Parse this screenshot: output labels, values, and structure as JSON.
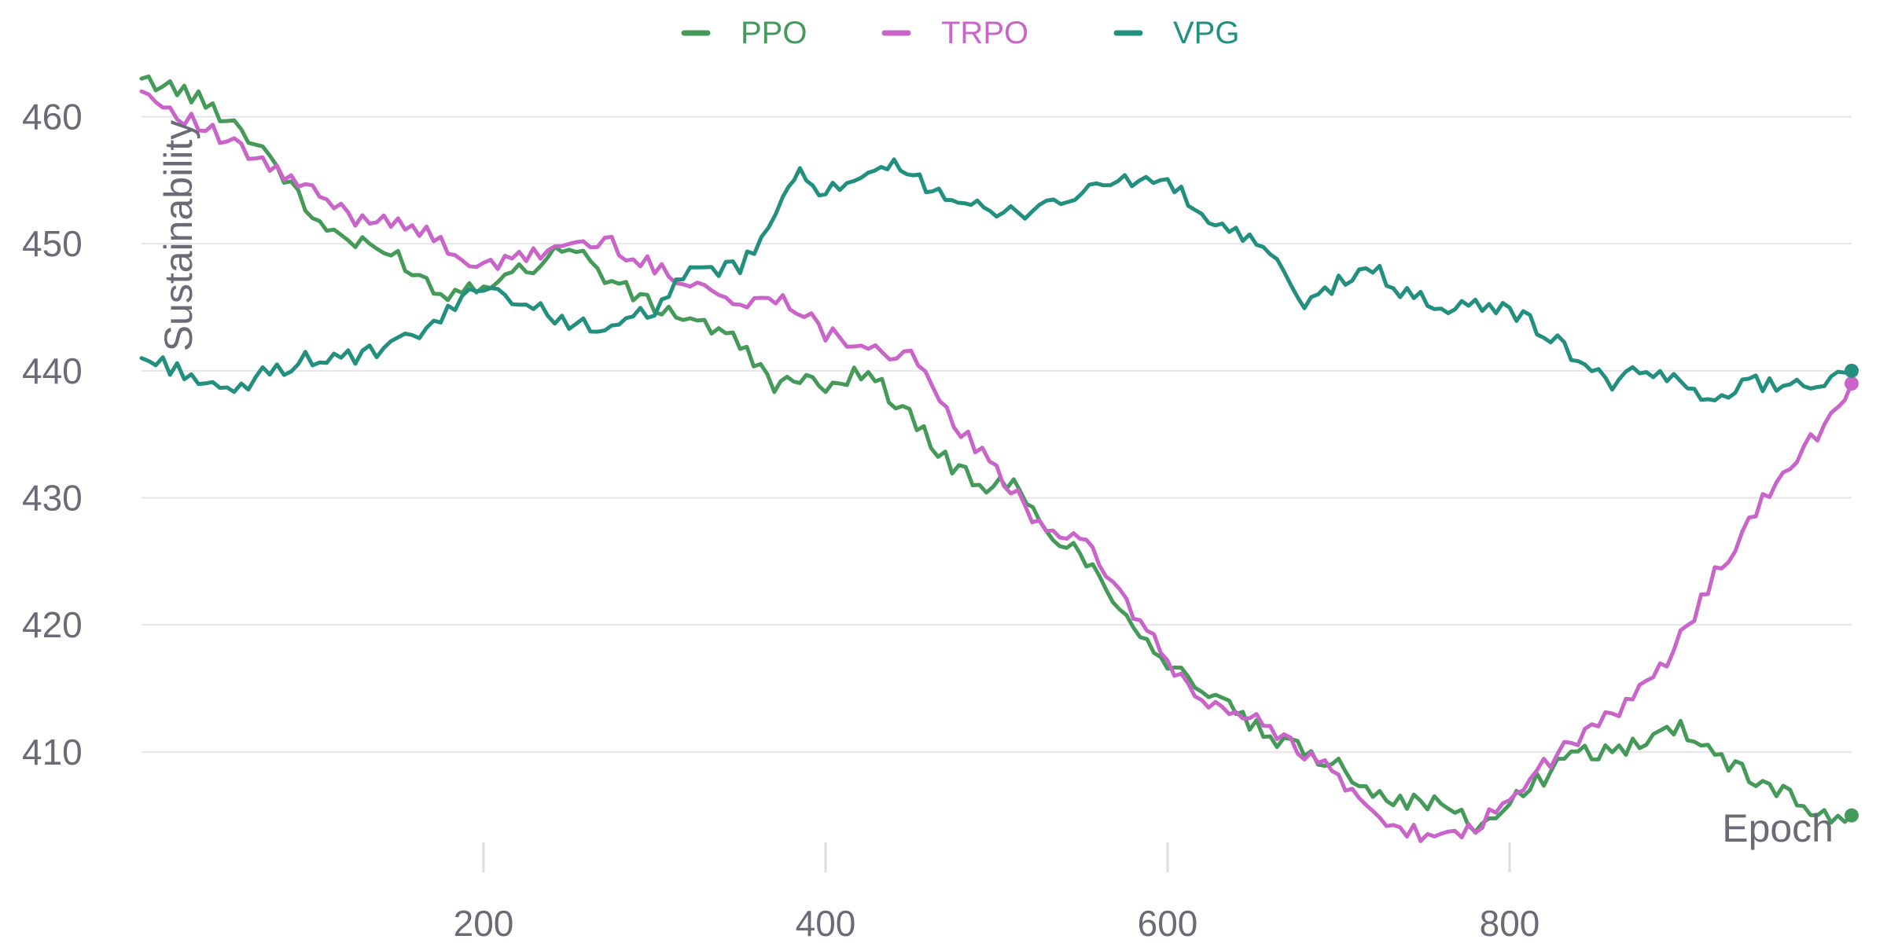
{
  "chart_data": {
    "type": "line",
    "xlabel": "Epoch",
    "ylabel": "Sustainability",
    "xlim": [
      0,
      1000
    ],
    "ylim": [
      403,
      463
    ],
    "x_ticks": [
      200,
      400,
      600,
      800
    ],
    "y_ticks": [
      410,
      420,
      430,
      440,
      450,
      460
    ],
    "grid": "horizontal",
    "legend_position": "top-center",
    "series": [
      {
        "name": "PPO",
        "color": "#459a5a",
        "points": [
          [
            0,
            463
          ],
          [
            25,
            462
          ],
          [
            50,
            460
          ],
          [
            75,
            457
          ],
          [
            100,
            452
          ],
          [
            125,
            450
          ],
          [
            150,
            449
          ],
          [
            175,
            446
          ],
          [
            200,
            447
          ],
          [
            225,
            448
          ],
          [
            250,
            450
          ],
          [
            275,
            447
          ],
          [
            300,
            445
          ],
          [
            325,
            444
          ],
          [
            350,
            442
          ],
          [
            370,
            439
          ],
          [
            400,
            439
          ],
          [
            425,
            440
          ],
          [
            445,
            437
          ],
          [
            470,
            433
          ],
          [
            490,
            431
          ],
          [
            510,
            431
          ],
          [
            525,
            428
          ],
          [
            545,
            426
          ],
          [
            560,
            424
          ],
          [
            580,
            420
          ],
          [
            600,
            417
          ],
          [
            620,
            415
          ],
          [
            640,
            413
          ],
          [
            660,
            411
          ],
          [
            680,
            410
          ],
          [
            700,
            409
          ],
          [
            720,
            407
          ],
          [
            740,
            406
          ],
          [
            760,
            406
          ],
          [
            780,
            404
          ],
          [
            800,
            406
          ],
          [
            820,
            408
          ],
          [
            840,
            410
          ],
          [
            860,
            410
          ],
          [
            880,
            411
          ],
          [
            900,
            412
          ],
          [
            920,
            410
          ],
          [
            940,
            408
          ],
          [
            960,
            407
          ],
          [
            980,
            405
          ],
          [
            1000,
            405
          ]
        ]
      },
      {
        "name": "TRPO",
        "color": "#c964c9",
        "points": [
          [
            0,
            462
          ],
          [
            25,
            460
          ],
          [
            50,
            458
          ],
          [
            75,
            456
          ],
          [
            100,
            454
          ],
          [
            125,
            452
          ],
          [
            150,
            452
          ],
          [
            175,
            450
          ],
          [
            200,
            448
          ],
          [
            225,
            449
          ],
          [
            250,
            450
          ],
          [
            275,
            450
          ],
          [
            300,
            448
          ],
          [
            325,
            447
          ],
          [
            350,
            445
          ],
          [
            375,
            446
          ],
          [
            400,
            443
          ],
          [
            425,
            442
          ],
          [
            450,
            441
          ],
          [
            475,
            436
          ],
          [
            500,
            432
          ],
          [
            525,
            428
          ],
          [
            545,
            427
          ],
          [
            560,
            425
          ],
          [
            580,
            421
          ],
          [
            600,
            417
          ],
          [
            620,
            414
          ],
          [
            640,
            413
          ],
          [
            660,
            412
          ],
          [
            680,
            410
          ],
          [
            700,
            408
          ],
          [
            720,
            405
          ],
          [
            740,
            404
          ],
          [
            760,
            403
          ],
          [
            780,
            404
          ],
          [
            800,
            406
          ],
          [
            820,
            409
          ],
          [
            840,
            411
          ],
          [
            860,
            413
          ],
          [
            880,
            415
          ],
          [
            900,
            419
          ],
          [
            920,
            424
          ],
          [
            940,
            428
          ],
          [
            960,
            432
          ],
          [
            980,
            435
          ],
          [
            1000,
            439
          ]
        ]
      },
      {
        "name": "VPG",
        "color": "#23907f",
        "points": [
          [
            0,
            441
          ],
          [
            25,
            440
          ],
          [
            50,
            438
          ],
          [
            75,
            440
          ],
          [
            100,
            441
          ],
          [
            125,
            441
          ],
          [
            150,
            442
          ],
          [
            175,
            444
          ],
          [
            200,
            447
          ],
          [
            225,
            445
          ],
          [
            250,
            444
          ],
          [
            275,
            443
          ],
          [
            300,
            445
          ],
          [
            325,
            448
          ],
          [
            350,
            448
          ],
          [
            375,
            453
          ],
          [
            385,
            456
          ],
          [
            400,
            454
          ],
          [
            425,
            455
          ],
          [
            440,
            456
          ],
          [
            470,
            454
          ],
          [
            500,
            452
          ],
          [
            525,
            453
          ],
          [
            550,
            454
          ],
          [
            575,
            455
          ],
          [
            600,
            455
          ],
          [
            620,
            452
          ],
          [
            640,
            451
          ],
          [
            660,
            449
          ],
          [
            680,
            445
          ],
          [
            700,
            447
          ],
          [
            720,
            448
          ],
          [
            740,
            446
          ],
          [
            760,
            445
          ],
          [
            780,
            445
          ],
          [
            800,
            445
          ],
          [
            820,
            443
          ],
          [
            840,
            441
          ],
          [
            860,
            439
          ],
          [
            880,
            440
          ],
          [
            900,
            439
          ],
          [
            920,
            438
          ],
          [
            940,
            439
          ],
          [
            960,
            439
          ],
          [
            980,
            439
          ],
          [
            1000,
            440
          ]
        ]
      }
    ]
  }
}
